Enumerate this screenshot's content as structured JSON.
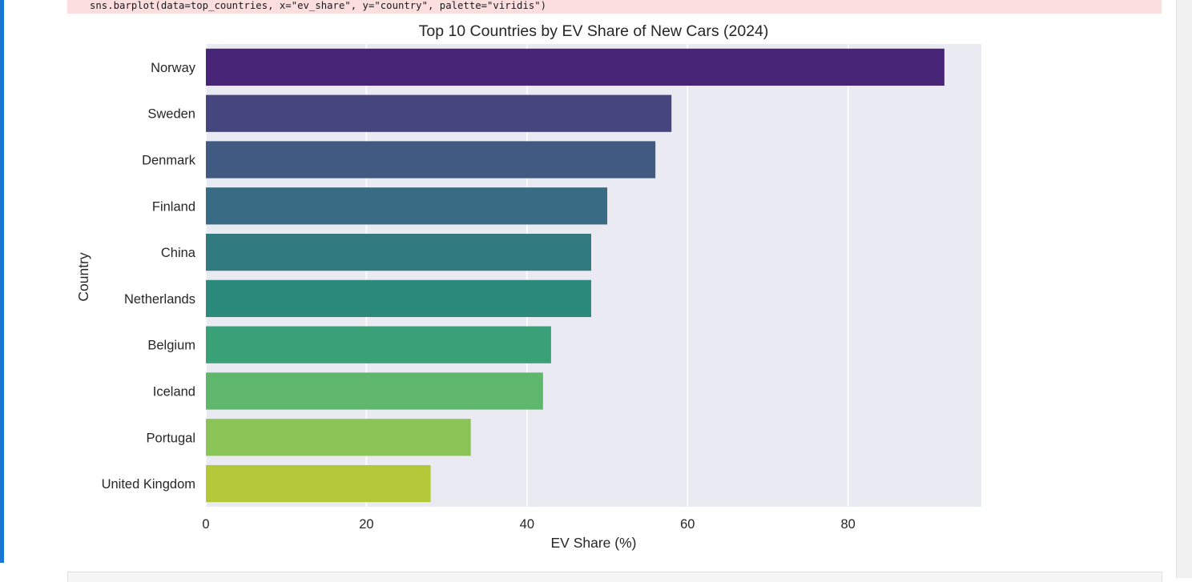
{
  "code": {
    "line": "sns.barplot(data=top_countries, x=\"ev_share\", y=\"country\", palette=\"viridis\")"
  },
  "colors": {
    "active_cell_bar": "#1976d2",
    "stderr_bg": "#fddede",
    "plot_bg": "#eaeaf2"
  },
  "chart_data": {
    "type": "bar",
    "orientation": "horizontal",
    "title": "Top 10 Countries by EV Share of New Cars (2024)",
    "xlabel": "EV Share (%)",
    "ylabel": "Country",
    "xlim": [
      0,
      96.6
    ],
    "xticks": [
      0,
      20,
      40,
      60,
      80
    ],
    "grid": true,
    "categories": [
      "Norway",
      "Sweden",
      "Denmark",
      "Finland",
      "China",
      "Netherlands",
      "Belgium",
      "Iceland",
      "Portugal",
      "United Kingdom"
    ],
    "values": [
      92,
      58,
      56,
      50,
      48,
      48,
      43,
      42,
      33,
      28
    ],
    "palette": [
      "#482677",
      "#46467e",
      "#415a82",
      "#3a6b84",
      "#307a80",
      "#2c8a7c",
      "#3aa077",
      "#5fb66d",
      "#8ac457",
      "#b3c839"
    ]
  }
}
